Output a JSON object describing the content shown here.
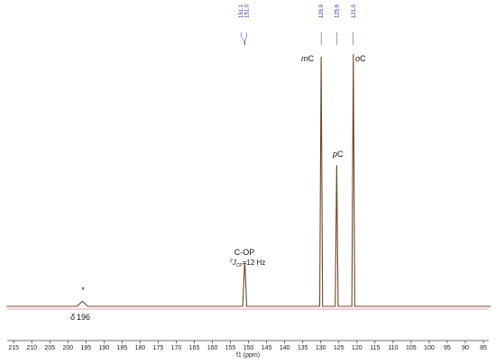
{
  "chart_data": {
    "type": "line",
    "xlabel": "f1 (ppm)",
    "x": [
      217,
      197.5,
      196,
      194.5,
      151.6,
      151.1,
      151.0,
      150.5,
      130.3,
      129.9,
      129.5,
      126.0,
      125.6,
      125.2,
      121.4,
      121.0,
      120.6,
      83
    ],
    "series": [
      {
        "color": "#6b4a2a",
        "values": [
          0,
          0,
          2,
          0,
          0,
          17,
          17,
          0,
          0,
          99,
          0,
          0,
          56,
          0,
          0,
          100,
          0,
          0
        ]
      }
    ],
    "xlim": [
      216.8,
      83.5
    ],
    "ylim": [
      0,
      100
    ],
    "xticks": [
      215,
      210,
      205,
      200,
      195,
      190,
      185,
      180,
      175,
      170,
      165,
      160,
      155,
      150,
      145,
      140,
      135,
      130,
      125,
      120,
      115,
      110,
      105,
      100,
      95,
      90,
      85
    ],
    "peak_labels": [
      151.1,
      {
        "value": 151.0,
        "label": "151.0"
      },
      129.9,
      125.6,
      {
        "value": 121.0,
        "label": "121.0"
      }
    ],
    "annotations": {
      "mC": {
        "italic": "m",
        "text": "C"
      },
      "pC": {
        "italic": "p",
        "text": "C"
      },
      "oC": {
        "italic": "o",
        "text": "C"
      },
      "cop": "C-OP",
      "coupling": {
        "sup": "2",
        "main": "J",
        "sub": "CP",
        "rest": "=12 Hz"
      },
      "delta": {
        "symbol": "δ",
        "text": "196"
      },
      "star": "*"
    }
  }
}
